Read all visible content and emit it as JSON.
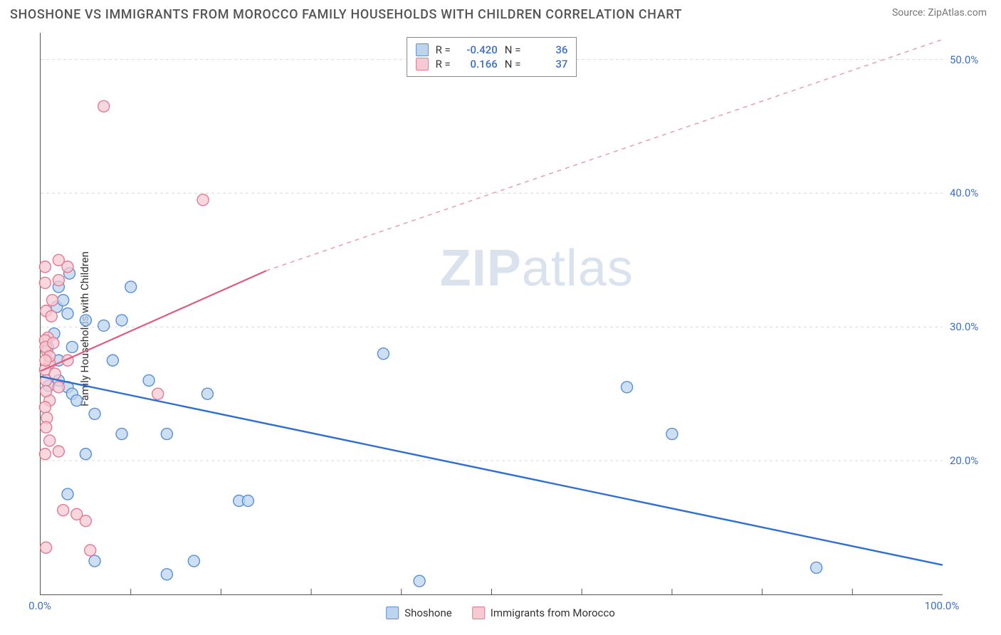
{
  "title": "SHOSHONE VS IMMIGRANTS FROM MOROCCO FAMILY HOUSEHOLDS WITH CHILDREN CORRELATION CHART",
  "source": "Source: ZipAtlas.com",
  "ylabel": "Family Households with Children",
  "watermark_main": "ZIP",
  "watermark_sub": "atlas",
  "chart": {
    "type": "scatter",
    "xlim": [
      0,
      100
    ],
    "ylim": [
      10,
      52
    ],
    "x_ticks_minor": [
      10,
      20,
      30,
      40,
      50,
      60,
      70,
      80,
      90
    ],
    "x_tick_labels": [
      {
        "v": 0,
        "label": "0.0%"
      },
      {
        "v": 100,
        "label": "100.0%"
      }
    ],
    "y_ticks": [
      {
        "v": 20,
        "label": "20.0%"
      },
      {
        "v": 30,
        "label": "30.0%"
      },
      {
        "v": 40,
        "label": "40.0%"
      },
      {
        "v": 50,
        "label": "50.0%"
      }
    ],
    "grid_color": "#d9d9d9",
    "background_color": "#ffffff",
    "marker_radius": 8,
    "marker_stroke_width": 1.4,
    "series": [
      {
        "id": "shoshone",
        "label": "Shoshone",
        "fill": "#bcd4ee",
        "stroke": "#5a8fd6",
        "swatch_fill": "#bcd4ee",
        "swatch_stroke": "#5a8fd6",
        "R": "-0.420",
        "N": "36",
        "trend": {
          "x1": 0,
          "y1": 26.3,
          "x2": 100,
          "y2": 12.2,
          "color": "#2f6fd1",
          "width": 2.4,
          "dash": "none"
        },
        "points": [
          [
            2,
            33
          ],
          [
            3,
            31
          ],
          [
            5,
            30.5
          ],
          [
            9,
            30.5
          ],
          [
            1.5,
            29.5
          ],
          [
            3.5,
            28.5
          ],
          [
            2,
            27.5
          ],
          [
            8,
            27.5
          ],
          [
            2,
            26
          ],
          [
            3,
            25.5
          ],
          [
            3.5,
            25
          ],
          [
            6,
            23.5
          ],
          [
            12,
            26
          ],
          [
            38,
            28
          ],
          [
            65,
            25.5
          ],
          [
            70,
            22
          ],
          [
            86,
            12
          ],
          [
            14,
            22
          ],
          [
            22,
            17
          ],
          [
            23,
            17
          ],
          [
            5,
            20.5
          ],
          [
            3,
            17.5
          ],
          [
            14,
            11.5
          ],
          [
            42,
            11
          ],
          [
            17,
            12.5
          ],
          [
            6,
            12.5
          ],
          [
            9,
            22
          ],
          [
            10,
            33
          ],
          [
            1.8,
            31.5
          ],
          [
            0.8,
            28.5
          ],
          [
            18.5,
            25
          ],
          [
            4,
            24.5
          ],
          [
            0.9,
            25.6
          ],
          [
            2.5,
            32
          ],
          [
            7,
            30.1
          ],
          [
            3.2,
            34
          ]
        ]
      },
      {
        "id": "morocco",
        "label": "Immigrants from Morocco",
        "fill": "#f6c9d3",
        "stroke": "#e47a94",
        "swatch_fill": "#f6c9d3",
        "swatch_stroke": "#e47a94",
        "R": "0.166",
        "N": "37",
        "trend_solid": {
          "x1": 0,
          "y1": 26.7,
          "x2": 25,
          "y2": 34.2,
          "color": "#e05a7f",
          "width": 2.2
        },
        "trend_dash": {
          "x1": 25,
          "y1": 34.2,
          "x2": 100,
          "y2": 51.5,
          "color": "#e8a3b5",
          "width": 1.6,
          "dash": "6 6"
        },
        "points": [
          [
            7,
            46.5
          ],
          [
            18,
            39.5
          ],
          [
            0.5,
            34.5
          ],
          [
            3,
            34.5
          ],
          [
            2,
            33.5
          ],
          [
            0.5,
            33.3
          ],
          [
            0.6,
            31.2
          ],
          [
            0.8,
            29.2
          ],
          [
            0.5,
            29
          ],
          [
            0.7,
            28.2
          ],
          [
            3,
            27.5
          ],
          [
            1,
            27.3
          ],
          [
            0.5,
            26.8
          ],
          [
            0.6,
            26
          ],
          [
            2,
            25.5
          ],
          [
            1,
            24.5
          ],
          [
            0.5,
            24
          ],
          [
            0.7,
            23.2
          ],
          [
            0.6,
            22.5
          ],
          [
            1,
            21.5
          ],
          [
            2,
            20.7
          ],
          [
            0.5,
            20.5
          ],
          [
            2.5,
            16.3
          ],
          [
            4,
            16
          ],
          [
            5,
            15.5
          ],
          [
            0.6,
            13.5
          ],
          [
            5.5,
            13.3
          ],
          [
            2,
            35
          ],
          [
            1.2,
            30.8
          ],
          [
            1.3,
            32
          ],
          [
            0.55,
            28.5
          ],
          [
            1,
            27.8
          ],
          [
            1.6,
            26.5
          ],
          [
            0.6,
            25.2
          ],
          [
            0.55,
            27.5
          ],
          [
            1.4,
            28.8
          ],
          [
            13,
            25
          ]
        ]
      }
    ]
  },
  "legend_top_prefix_R": "R =",
  "legend_top_prefix_N": "N ="
}
